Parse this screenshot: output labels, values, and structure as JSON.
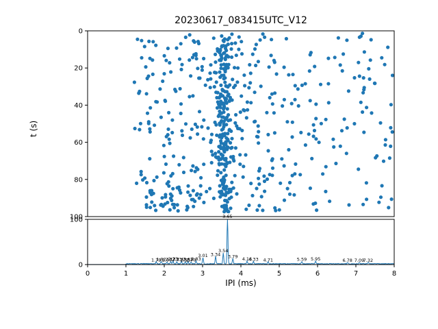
{
  "title": "20230617_083415UTC_V12",
  "chart_data": [
    {
      "type": "scatter",
      "title": "",
      "xlabel": "",
      "ylabel": "t (s)",
      "xlim": [
        0,
        8
      ],
      "ylim": [
        100,
        0
      ],
      "y_inverted": true,
      "yticks": [
        0,
        20,
        40,
        60,
        80,
        100
      ],
      "grid": false,
      "marker_color": "#1f77b4",
      "clusters": [
        {
          "type": "uniform",
          "n": 300,
          "x": [
            1.15,
            4.9
          ],
          "t": [
            1,
            97
          ]
        },
        {
          "type": "uniform",
          "n": 125,
          "x": [
            4.9,
            8.0
          ],
          "t": [
            1,
            97
          ]
        },
        {
          "type": "normal",
          "n": 215,
          "x_mean": 3.57,
          "x_sd": 0.1,
          "t": [
            2,
            98
          ]
        },
        {
          "type": "uniform",
          "n": 30,
          "x": [
            1.5,
            3.3
          ],
          "t": [
            86,
            97
          ]
        }
      ]
    },
    {
      "type": "line",
      "title": "",
      "xlabel": "IPI (ms)",
      "ylabel": "",
      "xlim": [
        0,
        8
      ],
      "ylim": [
        0,
        100
      ],
      "xticks": [
        0,
        1,
        2,
        3,
        4,
        5,
        6,
        7,
        8
      ],
      "yticks": [
        0,
        100
      ],
      "grid": false,
      "line_color": "#1f77b4",
      "peaks": [
        {
          "x": 1.79,
          "h": 4,
          "label": "1.79"
        },
        {
          "x": 1.92,
          "h": 5,
          "label": "1.92"
        },
        {
          "x": 2.07,
          "h": 4,
          "label": "2.07"
        },
        {
          "x": 2.17,
          "h": 5,
          "label": "2.17"
        },
        {
          "x": 2.23,
          "h": 6,
          "label": "2.23"
        },
        {
          "x": 2.33,
          "h": 5,
          "label": "2.33"
        },
        {
          "x": 2.45,
          "h": 5,
          "label": "2.45"
        },
        {
          "x": 2.55,
          "h": 4,
          "label": "2.55"
        },
        {
          "x": 2.62,
          "h": 5,
          "label": "2.62"
        },
        {
          "x": 2.7,
          "h": 4,
          "label": "2.70"
        },
        {
          "x": 2.83,
          "h": 6,
          "label": "2.83"
        },
        {
          "x": 3.01,
          "h": 14,
          "label": "3.01"
        },
        {
          "x": 3.34,
          "h": 16,
          "label": "3.34"
        },
        {
          "x": 3.54,
          "h": 24,
          "label": "3.54"
        },
        {
          "x": 3.65,
          "h": 100,
          "label": "3.65"
        },
        {
          "x": 3.79,
          "h": 11,
          "label": "3.79"
        },
        {
          "x": 4.16,
          "h": 6,
          "label": "4.16"
        },
        {
          "x": 4.33,
          "h": 5,
          "label": "4.33"
        },
        {
          "x": 4.71,
          "h": 4,
          "label": "4.71"
        },
        {
          "x": 5.59,
          "h": 5,
          "label": "5.59"
        },
        {
          "x": 5.95,
          "h": 6,
          "label": "5.95"
        },
        {
          "x": 6.78,
          "h": 3,
          "label": "6.78"
        },
        {
          "x": 7.09,
          "h": 3,
          "label": "7.09"
        },
        {
          "x": 7.32,
          "h": 3,
          "label": "7.32"
        }
      ]
    }
  ]
}
